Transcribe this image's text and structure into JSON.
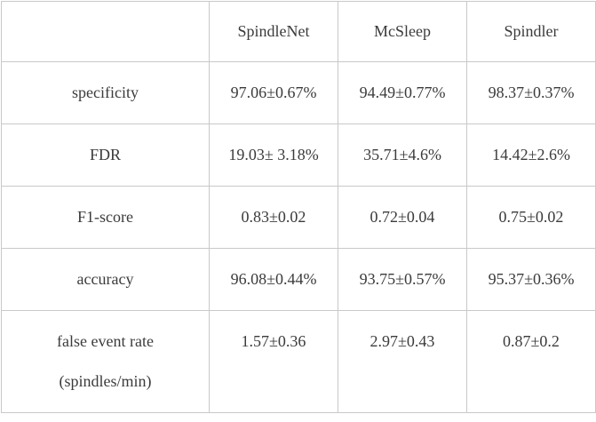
{
  "table": {
    "title": "spindle-detection-results",
    "colors": {
      "border": "#c9c9c9",
      "text": "#3b3b3b",
      "background": "#ffffff"
    },
    "header": [
      "",
      "SpindleNet",
      "McSleep",
      "Spindler"
    ],
    "rows": [
      {
        "label": "specificity",
        "values": [
          "97.06±0.67%",
          "94.49±0.77%",
          "98.37±0.37%"
        ]
      },
      {
        "label": "FDR",
        "values": [
          "19.03± 3.18%",
          "35.71±4.6%",
          "14.42±2.6%"
        ]
      },
      {
        "label": "F1-score",
        "values": [
          "0.83±0.02",
          "0.72±0.04",
          "0.75±0.02"
        ]
      },
      {
        "label": "accuracy",
        "values": [
          "96.08±0.44%",
          "93.75±0.57%",
          "95.37±0.36%"
        ]
      },
      {
        "label": "false event rate (spindles/min)",
        "values": [
          "1.57±0.36",
          "2.97±0.43",
          "0.87±0.2"
        ]
      }
    ]
  }
}
